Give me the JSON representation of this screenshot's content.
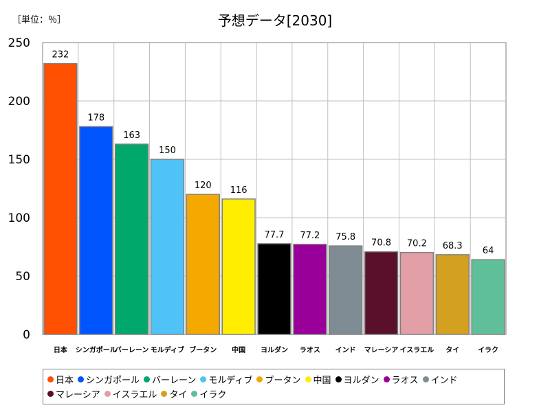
{
  "unit_label": "［単位：％］",
  "colors": [
    "#ff4f00",
    "#0055ff",
    "#00a86b",
    "#4fc3f7",
    "#f5a800",
    "#ffee00",
    "#000000",
    "#990099",
    "#7f8c93",
    "#5a0f2a",
    "#e39fa6",
    "#d4a020",
    "#5fbf99"
  ],
  "chart_data": {
    "type": "bar",
    "title": "予想データ[2030]",
    "categories": [
      "日本",
      "シンガポール",
      "バーレーン",
      "モルディブ",
      "ブータン",
      "中国",
      "ヨルダン",
      "ラオス",
      "インド",
      "マレーシア",
      "イスラエル",
      "タイ",
      "イラク"
    ],
    "values": [
      232,
      178,
      163,
      150,
      120,
      116,
      77.7,
      77.2,
      75.8,
      70.8,
      70.2,
      68.3,
      64
    ],
    "value_labels": [
      "232",
      "178",
      "163",
      "150",
      "120",
      "116",
      "77.7",
      "77.2",
      "75.8",
      "70.8",
      "70.2",
      "68.3",
      "64"
    ],
    "yticks": [
      "0",
      "50",
      "100",
      "150",
      "200",
      "250"
    ],
    "ylim": [
      0,
      250
    ],
    "grid": true,
    "legend_position": "bottom"
  }
}
